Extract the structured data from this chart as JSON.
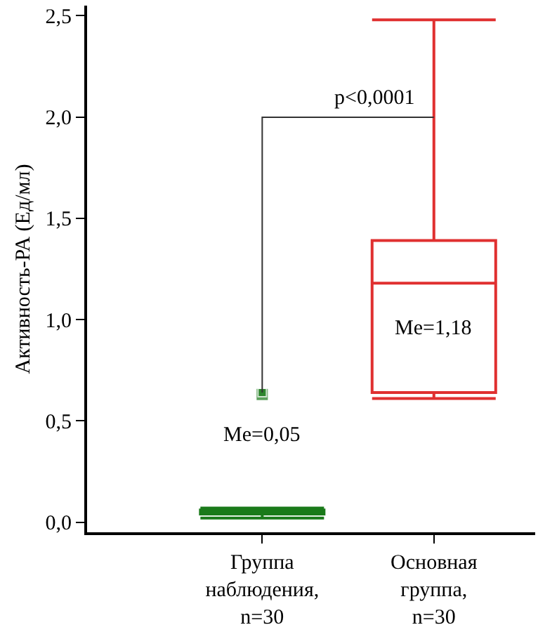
{
  "chart_data": {
    "type": "box",
    "ylabel": "Активность-РА (Ед/мл)",
    "categories": [
      "Группа наблюдения, n=30",
      "Основная группа, n=30"
    ],
    "series": [
      {
        "color": "#1a7a1a",
        "boxes": [
          {
            "low": 0.02,
            "q1": 0.04,
            "median": 0.05,
            "q3": 0.06,
            "high": 0.07
          },
          null
        ]
      },
      {
        "color": "#e03030",
        "boxes": [
          null,
          {
            "low": 0.61,
            "q1": 0.64,
            "median": 1.18,
            "q3": 1.39,
            "high": 2.48
          }
        ]
      },
      {
        "type": "scatter",
        "color": "#1a7a1a",
        "x": [
          "Группа наблюдения, n=30",
          "Группа наблюдения, n=30"
        ],
        "values": [
          0.63,
          0.64
        ]
      }
    ],
    "marker": "square",
    "ylim": [
      -0.05,
      2.55
    ],
    "yticks": [
      {
        "value": 0,
        "label": "0,0"
      },
      {
        "value": 0.5,
        "label": "0,5"
      },
      {
        "value": 1,
        "label": "1,0"
      },
      {
        "value": 1.5,
        "label": "1,5"
      },
      {
        "value": 2,
        "label": "2,0"
      },
      {
        "value": 2.5,
        "label": "2,5"
      }
    ],
    "grid": false,
    "annotations": [
      "p<0,0001",
      "Me=0,05",
      "Me=1,18"
    ]
  }
}
